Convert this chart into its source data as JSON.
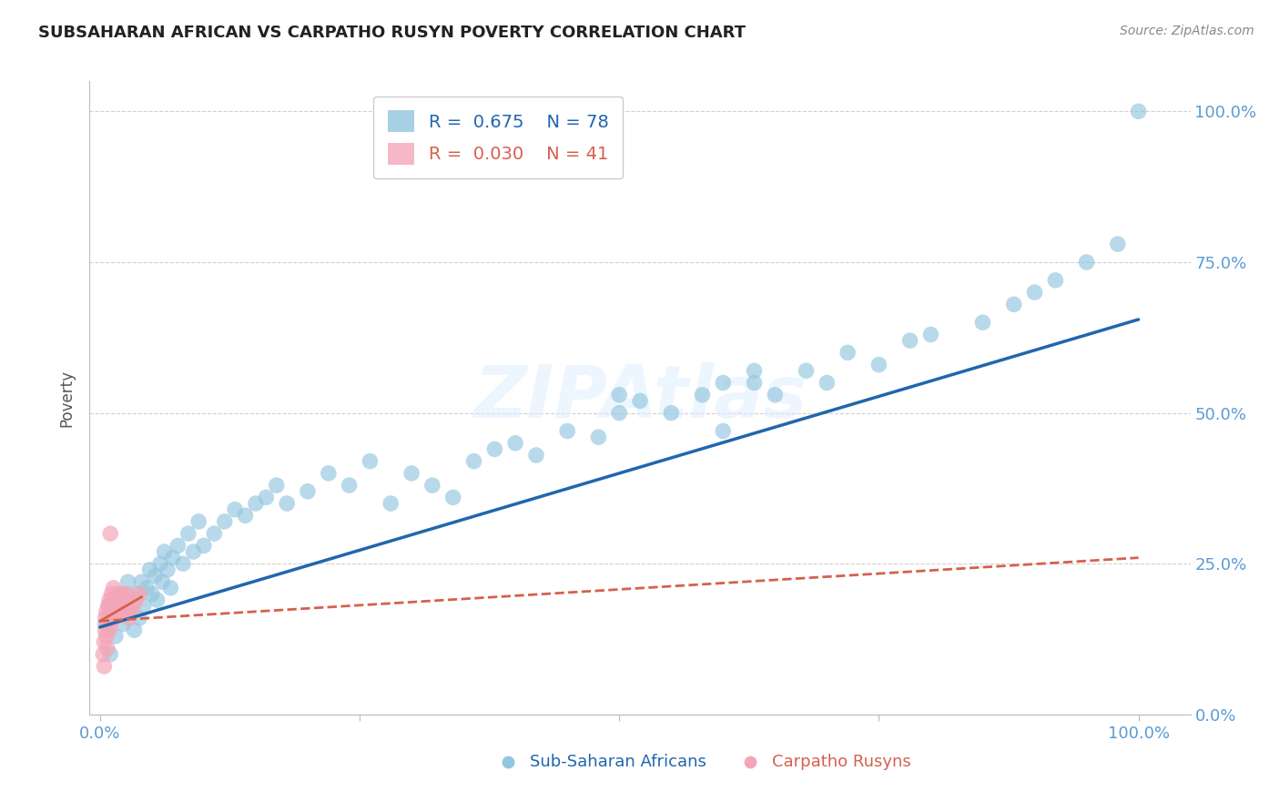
{
  "title": "SUBSAHARAN AFRICAN VS CARPATHO RUSYN POVERTY CORRELATION CHART",
  "source_text": "Source: ZipAtlas.com",
  "ylabel": "Poverty",
  "watermark": "ZIPAtlas",
  "blue_label": "Sub-Saharan Africans",
  "pink_label": "Carpatho Rusyns",
  "blue_R": "0.675",
  "blue_N": "78",
  "pink_R": "0.030",
  "pink_N": "41",
  "blue_color": "#92c5de",
  "pink_color": "#f4a6b8",
  "blue_line_color": "#2166ac",
  "pink_line_color": "#d6604d",
  "tick_color": "#5b9bd5",
  "background": "#ffffff",
  "grid_color": "#d0d0d0",
  "title_fontsize": 13,
  "blue_scatter_x": [
    0.005,
    0.008,
    0.01,
    0.012,
    0.015,
    0.018,
    0.02,
    0.022,
    0.025,
    0.027,
    0.03,
    0.033,
    0.035,
    0.038,
    0.04,
    0.042,
    0.045,
    0.048,
    0.05,
    0.053,
    0.055,
    0.058,
    0.06,
    0.062,
    0.065,
    0.068,
    0.07,
    0.075,
    0.08,
    0.085,
    0.09,
    0.095,
    0.1,
    0.11,
    0.12,
    0.13,
    0.14,
    0.15,
    0.16,
    0.17,
    0.18,
    0.2,
    0.22,
    0.24,
    0.26,
    0.28,
    0.3,
    0.32,
    0.34,
    0.36,
    0.38,
    0.4,
    0.42,
    0.45,
    0.48,
    0.5,
    0.52,
    0.55,
    0.58,
    0.6,
    0.63,
    0.65,
    0.68,
    0.7,
    0.72,
    0.75,
    0.78,
    0.8,
    0.85,
    0.88,
    0.9,
    0.92,
    0.95,
    0.98,
    1.0,
    0.5,
    0.6,
    0.63
  ],
  "blue_scatter_y": [
    0.15,
    0.18,
    0.1,
    0.16,
    0.13,
    0.19,
    0.2,
    0.15,
    0.17,
    0.22,
    0.18,
    0.14,
    0.2,
    0.16,
    0.22,
    0.18,
    0.21,
    0.24,
    0.2,
    0.23,
    0.19,
    0.25,
    0.22,
    0.27,
    0.24,
    0.21,
    0.26,
    0.28,
    0.25,
    0.3,
    0.27,
    0.32,
    0.28,
    0.3,
    0.32,
    0.34,
    0.33,
    0.35,
    0.36,
    0.38,
    0.35,
    0.37,
    0.4,
    0.38,
    0.42,
    0.35,
    0.4,
    0.38,
    0.36,
    0.42,
    0.44,
    0.45,
    0.43,
    0.47,
    0.46,
    0.5,
    0.52,
    0.5,
    0.53,
    0.47,
    0.55,
    0.53,
    0.57,
    0.55,
    0.6,
    0.58,
    0.62,
    0.63,
    0.65,
    0.68,
    0.7,
    0.72,
    0.75,
    0.78,
    1.0,
    0.53,
    0.55,
    0.57
  ],
  "pink_scatter_x": [
    0.003,
    0.004,
    0.004,
    0.005,
    0.005,
    0.006,
    0.006,
    0.007,
    0.007,
    0.008,
    0.008,
    0.009,
    0.009,
    0.01,
    0.01,
    0.011,
    0.011,
    0.012,
    0.012,
    0.013,
    0.013,
    0.014,
    0.015,
    0.016,
    0.017,
    0.018,
    0.019,
    0.02,
    0.021,
    0.022,
    0.023,
    0.024,
    0.025,
    0.026,
    0.027,
    0.028,
    0.03,
    0.032,
    0.035,
    0.038,
    0.01
  ],
  "pink_scatter_y": [
    0.1,
    0.12,
    0.08,
    0.14,
    0.16,
    0.13,
    0.17,
    0.15,
    0.11,
    0.16,
    0.18,
    0.14,
    0.19,
    0.15,
    0.17,
    0.16,
    0.2,
    0.17,
    0.19,
    0.18,
    0.21,
    0.16,
    0.18,
    0.17,
    0.19,
    0.2,
    0.18,
    0.17,
    0.19,
    0.2,
    0.18,
    0.17,
    0.19,
    0.2,
    0.18,
    0.16,
    0.17,
    0.18,
    0.19,
    0.2,
    0.3
  ],
  "blue_trend_x0": 0.0,
  "blue_trend_y0": 0.145,
  "blue_trend_x1": 1.0,
  "blue_trend_y1": 0.655,
  "pink_trend_x0": 0.0,
  "pink_trend_y0": 0.155,
  "pink_trend_x1": 1.0,
  "pink_trend_y1": 0.26,
  "ylim": [
    0.0,
    1.05
  ],
  "xlim": [
    -0.01,
    1.05
  ],
  "yticks": [
    0.0,
    0.25,
    0.5,
    0.75,
    1.0
  ],
  "ytick_labels_right": [
    "0.0%",
    "25.0%",
    "50.0%",
    "75.0%",
    "100.0%"
  ],
  "xticks": [
    0.0,
    0.25,
    0.5,
    0.75,
    1.0
  ],
  "xtick_labels": [
    "0.0%",
    "",
    "",
    "",
    "100.0%"
  ]
}
